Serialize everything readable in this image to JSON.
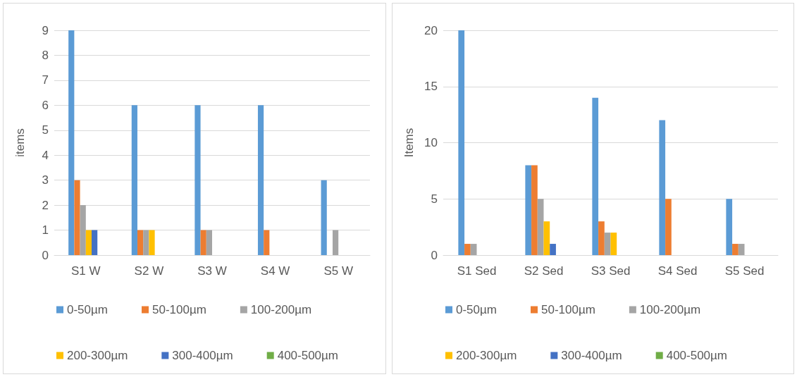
{
  "chart_data": [
    {
      "type": "bar",
      "ylabel": "items",
      "categories": [
        "S1 W",
        "S2 W",
        "S3 W",
        "S4 W",
        "S5 W"
      ],
      "ylim": [
        0,
        9
      ],
      "yticks": [
        0,
        1,
        2,
        3,
        4,
        5,
        6,
        7,
        8,
        9
      ],
      "grid": "y",
      "legend": "bottom",
      "series": [
        {
          "name": "0-50µm",
          "color": "#5b9bd5",
          "values": [
            9,
            6,
            6,
            6,
            3
          ]
        },
        {
          "name": "50-100µm",
          "color": "#ed7d31",
          "values": [
            3,
            1,
            1,
            1,
            0
          ]
        },
        {
          "name": "100-200µm",
          "color": "#a5a5a5",
          "values": [
            2,
            1,
            1,
            0,
            1
          ]
        },
        {
          "name": "200-300µm",
          "color": "#ffc000",
          "values": [
            1,
            1,
            0,
            0,
            0
          ]
        },
        {
          "name": "300-400µm",
          "color": "#4472c4",
          "values": [
            1,
            0,
            0,
            0,
            0
          ]
        },
        {
          "name": "400-500µm",
          "color": "#70ad47",
          "values": [
            0,
            0,
            0,
            0,
            0
          ]
        }
      ]
    },
    {
      "type": "bar",
      "ylabel": "Items",
      "categories": [
        "S1 Sed",
        "S2 Sed",
        "S3 Sed",
        "S4 Sed",
        "S5 Sed"
      ],
      "ylim": [
        0,
        20
      ],
      "yticks": [
        0,
        5,
        10,
        15,
        20
      ],
      "grid": "y",
      "legend": "bottom",
      "series": [
        {
          "name": "0-50µm",
          "color": "#5b9bd5",
          "values": [
            20,
            8,
            14,
            12,
            5
          ]
        },
        {
          "name": "50-100µm",
          "color": "#ed7d31",
          "values": [
            1,
            8,
            3,
            5,
            1
          ]
        },
        {
          "name": "100-200µm",
          "color": "#a5a5a5",
          "values": [
            1,
            5,
            2,
            0,
            1
          ]
        },
        {
          "name": "200-300µm",
          "color": "#ffc000",
          "values": [
            0,
            3,
            2,
            0,
            0
          ]
        },
        {
          "name": "300-400µm",
          "color": "#4472c4",
          "values": [
            0,
            1,
            0,
            0,
            0
          ]
        },
        {
          "name": "400-500µm",
          "color": "#70ad47",
          "values": [
            0,
            0,
            0,
            0,
            0
          ]
        }
      ]
    }
  ]
}
